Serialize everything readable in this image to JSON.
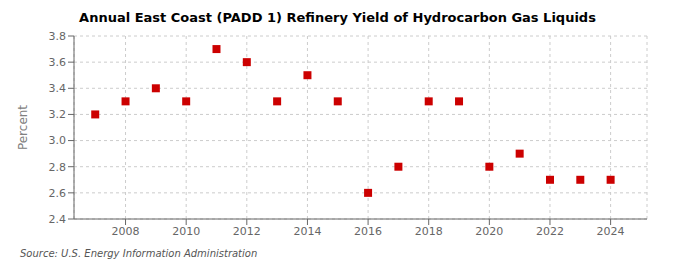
{
  "chart_data": {
    "type": "scatter",
    "title": "Annual East Coast (PADD 1) Refinery Yield of Hydrocarbon Gas Liquids",
    "ylabel": "Percent",
    "annotations": [
      "Source: U.S. Energy Information Administration"
    ],
    "x": [
      2007,
      2008,
      2009,
      2010,
      2011,
      2012,
      2013,
      2014,
      2015,
      2016,
      2017,
      2018,
      2019,
      2020,
      2021,
      2022,
      2023,
      2024
    ],
    "values": [
      3.2,
      3.3,
      3.4,
      3.3,
      3.7,
      3.6,
      3.3,
      3.5,
      3.3,
      2.6,
      2.8,
      3.3,
      3.3,
      2.8,
      2.9,
      2.7,
      2.7,
      2.7
    ],
    "color": "#cc0000",
    "marker": "square",
    "xlim": [
      2006.3,
      2025.2
    ],
    "xticks": [
      2008,
      2010,
      2012,
      2014,
      2016,
      2018,
      2020,
      2022,
      2024
    ],
    "ylim": [
      2.4,
      3.8
    ],
    "yticks": [
      2.4,
      2.6,
      2.8,
      {
        "value": 3.0,
        "label": "3.0"
      },
      3.2,
      3.4,
      3.6,
      3.8
    ],
    "grid": true
  }
}
